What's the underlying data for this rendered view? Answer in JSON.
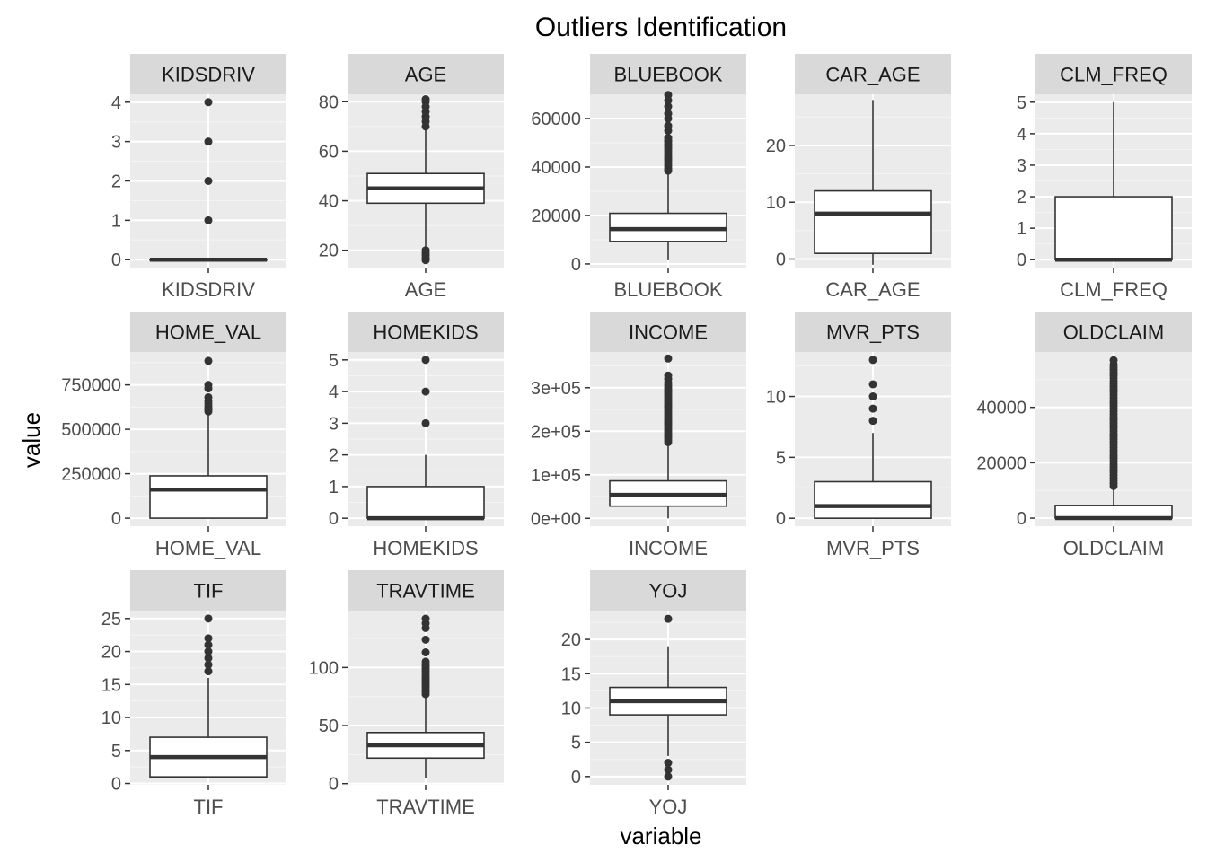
{
  "chart_data": {
    "type": "boxplot",
    "title": "Outliers Identification",
    "xlabel": "variable",
    "ylabel": "value",
    "colors": {
      "panel_bg": "#ebebeb",
      "strip_bg": "#d9d9d9",
      "grid_major": "#ffffff",
      "grid_minor": "#f5f5f5",
      "box_fill": "#ffffff",
      "box_line": "#333333",
      "outlier": "#333333",
      "tick_text": "#4d4d4d",
      "strip_text": "#1a1a1a",
      "title_text": "#000000"
    },
    "panels": [
      {
        "name": "KIDSDRIV",
        "ylim": [
          -0.2,
          4.2
        ],
        "ticks": [
          0,
          1,
          2,
          3,
          4
        ],
        "tick_labels": [
          "0",
          "1",
          "2",
          "3",
          "4"
        ],
        "stats": {
          "min": 0,
          "q1": 0,
          "median": 0,
          "q3": 0,
          "max": 0
        },
        "outliers": [
          1,
          2,
          3,
          4
        ]
      },
      {
        "name": "AGE",
        "ylim": [
          13,
          83
        ],
        "ticks": [
          20,
          40,
          60,
          80
        ],
        "tick_labels": [
          "20",
          "40",
          "60",
          "80"
        ],
        "stats": {
          "min": 21,
          "q1": 39,
          "median": 45,
          "q3": 51,
          "max": 69
        },
        "outliers": [
          16,
          17,
          18,
          19,
          20,
          70,
          72,
          74,
          76,
          78,
          80,
          81
        ]
      },
      {
        "name": "BLUEBOOK",
        "ylim": [
          -1500,
          70000
        ],
        "ticks": [
          0,
          20000,
          40000,
          60000
        ],
        "tick_labels": [
          "0",
          "20000",
          "40000",
          "60000"
        ],
        "stats": {
          "min": 1500,
          "q1": 9300,
          "median": 14400,
          "q3": 20900,
          "max": 38000
        },
        "outliers": [
          38500,
          39500,
          40500,
          41500,
          42500,
          43500,
          44500,
          45500,
          46500,
          47500,
          48500,
          49500,
          50500,
          51000,
          52000,
          55000,
          57000,
          60000,
          62000,
          65000,
          67500,
          69700
        ]
      },
      {
        "name": "CAR_AGE",
        "ylim": [
          -1.5,
          29
        ],
        "ticks": [
          0,
          10,
          20
        ],
        "tick_labels": [
          "0",
          "10",
          "20"
        ],
        "stats": {
          "min": -1,
          "q1": 1,
          "median": 8,
          "q3": 12,
          "max": 28
        },
        "outliers": []
      },
      {
        "name": "CLM_FREQ",
        "ylim": [
          -0.25,
          5.25
        ],
        "ticks": [
          0,
          1,
          2,
          3,
          4,
          5
        ],
        "tick_labels": [
          "0",
          "1",
          "2",
          "3",
          "4",
          "5"
        ],
        "stats": {
          "min": 0,
          "q1": 0,
          "median": 0,
          "q3": 2,
          "max": 5
        },
        "outliers": []
      },
      {
        "name": "HOME_VAL",
        "ylim": [
          -45000,
          935000
        ],
        "ticks": [
          0,
          250000,
          500000,
          750000
        ],
        "tick_labels": [
          "0",
          "250000",
          "500000",
          "750000"
        ],
        "stats": {
          "min": 0,
          "q1": 0,
          "median": 161000,
          "q3": 238000,
          "max": 595000
        },
        "outliers": [
          600000,
          610000,
          620000,
          630000,
          645000,
          660000,
          680000,
          730000,
          750000,
          885000
        ]
      },
      {
        "name": "HOMEKIDS",
        "ylim": [
          -0.25,
          5.25
        ],
        "ticks": [
          0,
          1,
          2,
          3,
          4,
          5
        ],
        "tick_labels": [
          "0",
          "1",
          "2",
          "3",
          "4",
          "5"
        ],
        "stats": {
          "min": 0,
          "q1": 0,
          "median": 0,
          "q3": 1,
          "max": 2
        },
        "outliers": [
          3,
          4,
          5
        ]
      },
      {
        "name": "INCOME",
        "ylim": [
          -18000,
          382000
        ],
        "ticks": [
          0,
          100000,
          200000,
          300000
        ],
        "tick_labels": [
          "0e+00",
          "1e+05",
          "2e+05",
          "3e+05"
        ],
        "stats": {
          "min": 0,
          "q1": 28000,
          "median": 54000,
          "q3": 86000,
          "max": 172000
        },
        "outliers": [
          175000,
          180000,
          185000,
          190000,
          195000,
          200000,
          205000,
          210000,
          215000,
          220000,
          225000,
          230000,
          235000,
          240000,
          245000,
          250000,
          255000,
          260000,
          265000,
          270000,
          275000,
          280000,
          285000,
          290000,
          295000,
          300000,
          306000,
          312000,
          320000,
          328000,
          367000
        ]
      },
      {
        "name": "MVR_PTS",
        "ylim": [
          -0.65,
          13.65
        ],
        "ticks": [
          0,
          5,
          10
        ],
        "tick_labels": [
          "0",
          "5",
          "10"
        ],
        "stats": {
          "min": 0,
          "q1": 0,
          "median": 1,
          "q3": 3,
          "max": 7
        },
        "outliers": [
          8,
          9,
          10,
          11,
          13
        ]
      },
      {
        "name": "OLDCLAIM",
        "ylim": [
          -2900,
          60000
        ],
        "ticks": [
          0,
          20000,
          40000
        ],
        "tick_labels": [
          "0",
          "20000",
          "40000"
        ],
        "stats": {
          "min": 0,
          "q1": 0,
          "median": 0,
          "q3": 4600,
          "max": 11400
        },
        "outliers": [
          11600,
          12500,
          13500,
          14500,
          15500,
          16500,
          17500,
          18500,
          19500,
          20500,
          21500,
          22500,
          23500,
          24500,
          25500,
          26500,
          27500,
          28500,
          29500,
          30500,
          31500,
          32500,
          33500,
          34500,
          35500,
          36500,
          37500,
          38500,
          39500,
          40500,
          41500,
          42500,
          43500,
          44500,
          45500,
          46500,
          47500,
          48500,
          49500,
          50500,
          51500,
          52500,
          53500,
          54500,
          55500,
          57000
        ]
      },
      {
        "name": "TIF",
        "ylim": [
          -0.2,
          26.2
        ],
        "ticks": [
          0,
          5,
          10,
          15,
          20,
          25
        ],
        "tick_labels": [
          "0",
          "5",
          "10",
          "15",
          "20",
          "25"
        ],
        "stats": {
          "min": 1,
          "q1": 1,
          "median": 4,
          "q3": 7,
          "max": 16
        },
        "outliers": [
          17,
          18,
          19,
          20,
          21,
          22,
          25
        ]
      },
      {
        "name": "TRAVTIME",
        "ylim": [
          -1,
          149
        ],
        "ticks": [
          0,
          50,
          100
        ],
        "tick_labels": [
          "0",
          "50",
          "100"
        ],
        "stats": {
          "min": 5,
          "q1": 22,
          "median": 33,
          "q3": 44,
          "max": 76
        },
        "outliers": [
          77,
          79,
          81,
          83,
          85,
          87,
          89,
          91,
          93,
          95,
          97,
          99,
          101,
          103,
          105,
          113,
          124,
          134,
          138,
          142
        ]
      },
      {
        "name": "YOJ",
        "ylim": [
          -1.2,
          24.2
        ],
        "ticks": [
          0,
          5,
          10,
          15,
          20
        ],
        "tick_labels": [
          "0",
          "5",
          "10",
          "15",
          "20"
        ],
        "stats": {
          "min": 3,
          "q1": 9,
          "median": 11,
          "q3": 13,
          "max": 19
        },
        "outliers": [
          0,
          1,
          2,
          23
        ]
      }
    ]
  }
}
